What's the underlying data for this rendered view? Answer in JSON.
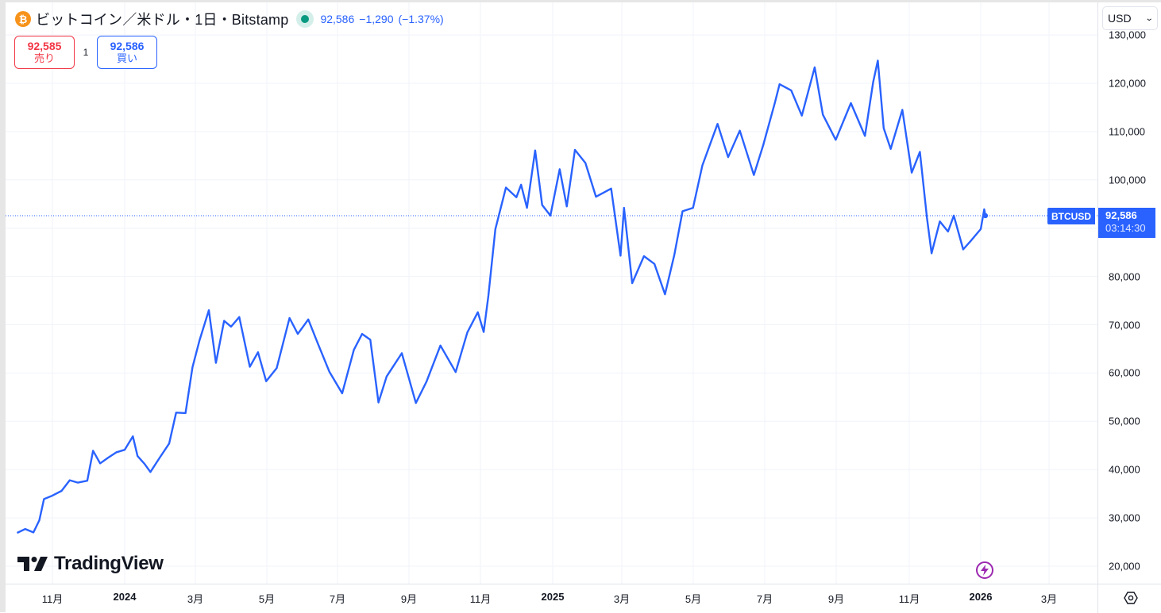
{
  "header": {
    "coin_icon": "bitcoin-icon",
    "coin_glyph": "₿",
    "title": "ビットコイン／米ドル・1日・Bitstamp",
    "market_status_icon": "market-open-dot-icon",
    "last_price": "92,586",
    "change": "−1,290",
    "change_pct": "(−1.37%)"
  },
  "trade": {
    "sell_price": "92,585",
    "sell_label": "売り",
    "quantity": "1",
    "buy_price": "92,586",
    "buy_label": "買い"
  },
  "currency_select": {
    "value": "USD"
  },
  "price_tag": {
    "symbol": "BTCUSD",
    "price": "92,586",
    "countdown": "03:14:30"
  },
  "branding": {
    "logo_text": "TradingView"
  },
  "colors": {
    "line": "#2962ff",
    "accent": "#2962ff",
    "sell": "#f23645",
    "status": "#089981",
    "bolt": "#9c27b0",
    "grid": "#f0f3fa"
  },
  "chart_data": {
    "type": "line",
    "title": "ビットコイン／米ドル・1日・Bitstamp",
    "series_name": "BTCUSD",
    "xlabel": "",
    "ylabel": "USD",
    "ylim": [
      18000,
      132000
    ],
    "y_ticks": [
      "20,000",
      "30,000",
      "40,000",
      "50,000",
      "60,000",
      "70,000",
      "80,000",
      "90,000",
      "100,000",
      "110,000",
      "120,000",
      "130,000"
    ],
    "x_ticks": [
      {
        "label": "11月",
        "bold": false
      },
      {
        "label": "2024",
        "bold": true
      },
      {
        "label": "3月",
        "bold": false
      },
      {
        "label": "5月",
        "bold": false
      },
      {
        "label": "7月",
        "bold": false
      },
      {
        "label": "9月",
        "bold": false
      },
      {
        "label": "11月",
        "bold": false
      },
      {
        "label": "2025",
        "bold": true
      },
      {
        "label": "3月",
        "bold": false
      },
      {
        "label": "5月",
        "bold": false
      },
      {
        "label": "7月",
        "bold": false
      },
      {
        "label": "9月",
        "bold": false
      },
      {
        "label": "11月",
        "bold": false
      },
      {
        "label": "2026",
        "bold": true
      },
      {
        "label": "3月",
        "bold": false
      }
    ],
    "grid": true,
    "last_value": 92586,
    "points_month_price": [
      [
        "2023-10-01",
        26900
      ],
      [
        "2023-10-08",
        27700
      ],
      [
        "2023-10-15",
        27000
      ],
      [
        "2023-10-20",
        29500
      ],
      [
        "2023-10-24",
        33900
      ],
      [
        "2023-10-31",
        34600
      ],
      [
        "2023-11-08",
        35600
      ],
      [
        "2023-11-15",
        37800
      ],
      [
        "2023-11-22",
        37300
      ],
      [
        "2023-11-30",
        37700
      ],
      [
        "2023-12-05",
        43900
      ],
      [
        "2023-12-11",
        41300
      ],
      [
        "2023-12-18",
        42500
      ],
      [
        "2023-12-25",
        43600
      ],
      [
        "2024-01-01",
        44100
      ],
      [
        "2024-01-08",
        46900
      ],
      [
        "2024-01-12",
        42800
      ],
      [
        "2024-01-18",
        41200
      ],
      [
        "2024-01-23",
        39500
      ],
      [
        "2024-01-31",
        42500
      ],
      [
        "2024-02-08",
        45400
      ],
      [
        "2024-02-14",
        51800
      ],
      [
        "2024-02-22",
        51700
      ],
      [
        "2024-02-28",
        61200
      ],
      [
        "2024-03-05",
        66800
      ],
      [
        "2024-03-13",
        73000
      ],
      [
        "2024-03-19",
        62100
      ],
      [
        "2024-03-26",
        70800
      ],
      [
        "2024-04-01",
        69600
      ],
      [
        "2024-04-08",
        71600
      ],
      [
        "2024-04-17",
        61300
      ],
      [
        "2024-04-24",
        64300
      ],
      [
        "2024-05-01",
        58300
      ],
      [
        "2024-05-10",
        61000
      ],
      [
        "2024-05-21",
        71400
      ],
      [
        "2024-05-28",
        68100
      ],
      [
        "2024-06-06",
        71100
      ],
      [
        "2024-06-14",
        66200
      ],
      [
        "2024-06-24",
        60300
      ],
      [
        "2024-07-05",
        55800
      ],
      [
        "2024-07-15",
        64800
      ],
      [
        "2024-07-22",
        68100
      ],
      [
        "2024-07-29",
        66900
      ],
      [
        "2024-08-05",
        53900
      ],
      [
        "2024-08-12",
        59300
      ],
      [
        "2024-08-25",
        64100
      ],
      [
        "2024-09-06",
        53800
      ],
      [
        "2024-09-15",
        58200
      ],
      [
        "2024-09-27",
        65700
      ],
      [
        "2024-10-10",
        60200
      ],
      [
        "2024-10-20",
        68400
      ],
      [
        "2024-10-29",
        72600
      ],
      [
        "2024-11-03",
        68500
      ],
      [
        "2024-11-07",
        76000
      ],
      [
        "2024-11-13",
        89800
      ],
      [
        "2024-11-22",
        98400
      ],
      [
        "2024-12-01",
        96400
      ],
      [
        "2024-12-05",
        99000
      ],
      [
        "2024-12-10",
        94200
      ],
      [
        "2024-12-17",
        106100
      ],
      [
        "2024-12-23",
        94800
      ],
      [
        "2024-12-30",
        92600
      ],
      [
        "2025-01-07",
        102200
      ],
      [
        "2025-01-13",
        94500
      ],
      [
        "2025-01-20",
        106200
      ],
      [
        "2025-01-29",
        103500
      ],
      [
        "2025-02-07",
        96500
      ],
      [
        "2025-02-20",
        98200
      ],
      [
        "2025-02-28",
        84300
      ],
      [
        "2025-03-03",
        94200
      ],
      [
        "2025-03-10",
        78600
      ],
      [
        "2025-03-20",
        84200
      ],
      [
        "2025-03-29",
        82600
      ],
      [
        "2025-04-07",
        76300
      ],
      [
        "2025-04-15",
        84500
      ],
      [
        "2025-04-22",
        93500
      ],
      [
        "2025-05-01",
        94200
      ],
      [
        "2025-05-09",
        103000
      ],
      [
        "2025-05-22",
        111600
      ],
      [
        "2025-05-31",
        104700
      ],
      [
        "2025-06-10",
        110200
      ],
      [
        "2025-06-22",
        101000
      ],
      [
        "2025-06-30",
        107200
      ],
      [
        "2025-07-10",
        116000
      ],
      [
        "2025-07-14",
        119800
      ],
      [
        "2025-07-24",
        118500
      ],
      [
        "2025-08-02",
        113300
      ],
      [
        "2025-08-13",
        123300
      ],
      [
        "2025-08-20",
        113500
      ],
      [
        "2025-08-31",
        108300
      ],
      [
        "2025-09-13",
        115900
      ],
      [
        "2025-09-25",
        109100
      ],
      [
        "2025-10-02",
        120200
      ],
      [
        "2025-10-06",
        124700
      ],
      [
        "2025-10-11",
        110700
      ],
      [
        "2025-10-17",
        106400
      ],
      [
        "2025-10-27",
        114500
      ],
      [
        "2025-11-04",
        101500
      ],
      [
        "2025-11-11",
        105800
      ],
      [
        "2025-11-17",
        92100
      ],
      [
        "2025-11-21",
        84800
      ],
      [
        "2025-11-28",
        91400
      ],
      [
        "2025-12-05",
        89300
      ],
      [
        "2025-12-10",
        92600
      ],
      [
        "2025-12-18",
        85600
      ],
      [
        "2025-12-25",
        87500
      ],
      [
        "2026-01-02",
        89800
      ],
      [
        "2026-01-05",
        93900
      ],
      [
        "2026-01-06",
        92586
      ]
    ]
  }
}
